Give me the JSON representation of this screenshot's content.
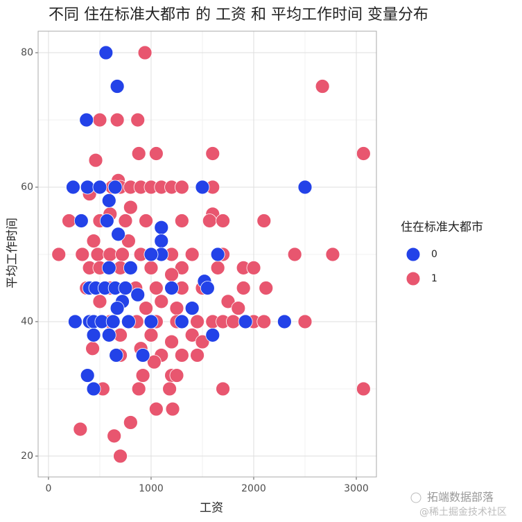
{
  "chart_data": {
    "type": "scatter",
    "title": "不同 住在标准大都市 的 工资 和 平均工作时间 变量分布",
    "x_label": "工资",
    "y_label": "平均工作时间",
    "legend_title": "住在标准大都市",
    "legend_position": "right",
    "xlim": [
      -101,
      3196
    ],
    "ylim": [
      16.9,
      83.2
    ],
    "xticks": [
      0,
      1000,
      2000,
      3000
    ],
    "yticks": [
      20,
      40,
      60,
      80
    ],
    "grid": true,
    "series": [
      {
        "name": "0",
        "color": "#2342e8",
        "x": [
          560,
          670,
          370,
          240,
          380,
          500,
          650,
          1500,
          2500,
          590,
          320,
          570,
          1100,
          680,
          1100,
          1650,
          800,
          590,
          1100,
          1000,
          1520,
          400,
          460,
          550,
          650,
          750,
          1200,
          1550,
          870,
          720,
          670,
          1400,
          260,
          400,
          440,
          520,
          630,
          780,
          1000,
          1920,
          2300,
          1300,
          440,
          590,
          1600,
          920,
          660,
          380,
          440
        ],
        "values": [
          80,
          75,
          70,
          60,
          60,
          60,
          60,
          60,
          60,
          58,
          55,
          55,
          54,
          53,
          52,
          50,
          48,
          48,
          50,
          50,
          46,
          45,
          45,
          45,
          45,
          45,
          45,
          45,
          44,
          43,
          42,
          42,
          40,
          40,
          40,
          40,
          40,
          40,
          40,
          40,
          40,
          40,
          38,
          38,
          38,
          35,
          35,
          32,
          30
        ]
      },
      {
        "name": "1",
        "color": "#e8566f",
        "x": [
          940,
          2670,
          3070,
          500,
          670,
          870,
          880,
          1050,
          1600,
          460,
          680,
          620,
          700,
          800,
          900,
          1000,
          1100,
          1200,
          1300,
          1600,
          400,
          800,
          600,
          1600,
          200,
          500,
          750,
          950,
          1300,
          1570,
          1700,
          2100,
          100,
          330,
          480,
          600,
          720,
          900,
          1000,
          1200,
          1400,
          1700,
          2400,
          2770,
          780,
          440,
          400,
          500,
          700,
          1000,
          1300,
          1650,
          1900,
          2000,
          1200,
          370,
          600,
          850,
          1050,
          1300,
          1500,
          1900,
          2120,
          500,
          1100,
          1750,
          950,
          1250,
          1850,
          600,
          860,
          1050,
          1250,
          1450,
          1600,
          1700,
          1800,
          2000,
          2100,
          2500,
          700,
          1000,
          1400,
          900,
          1200,
          430,
          1500,
          1100,
          1450,
          1300,
          700,
          1030,
          920,
          1200,
          1250,
          530,
          880,
          1180,
          1700,
          3070,
          1050,
          1210,
          800,
          310,
          640,
          700
        ],
        "values": [
          80,
          75,
          65,
          70,
          70,
          70,
          65,
          65,
          65,
          64,
          61,
          60,
          60,
          60,
          60,
          60,
          60,
          60,
          60,
          60,
          59,
          57,
          56,
          56,
          55,
          55,
          55,
          55,
          55,
          55,
          55,
          55,
          50,
          50,
          50,
          50,
          50,
          50,
          50,
          50,
          50,
          50,
          50,
          50,
          52,
          52,
          48,
          48,
          48,
          48,
          48,
          48,
          48,
          48,
          47,
          45,
          45,
          45,
          45,
          45,
          45,
          45,
          45,
          43,
          43,
          43,
          42,
          42,
          42,
          40,
          40,
          40,
          40,
          40,
          40,
          40,
          40,
          40,
          40,
          40,
          38,
          38,
          38,
          36,
          37,
          36,
          37,
          35,
          35,
          35,
          35,
          34,
          32,
          32,
          32,
          30,
          30,
          30,
          30,
          30,
          27,
          27,
          25,
          24,
          23,
          20
        ]
      }
    ],
    "watermark": [
      "拓端数据部落",
      "@稀土掘金技术社区"
    ]
  }
}
